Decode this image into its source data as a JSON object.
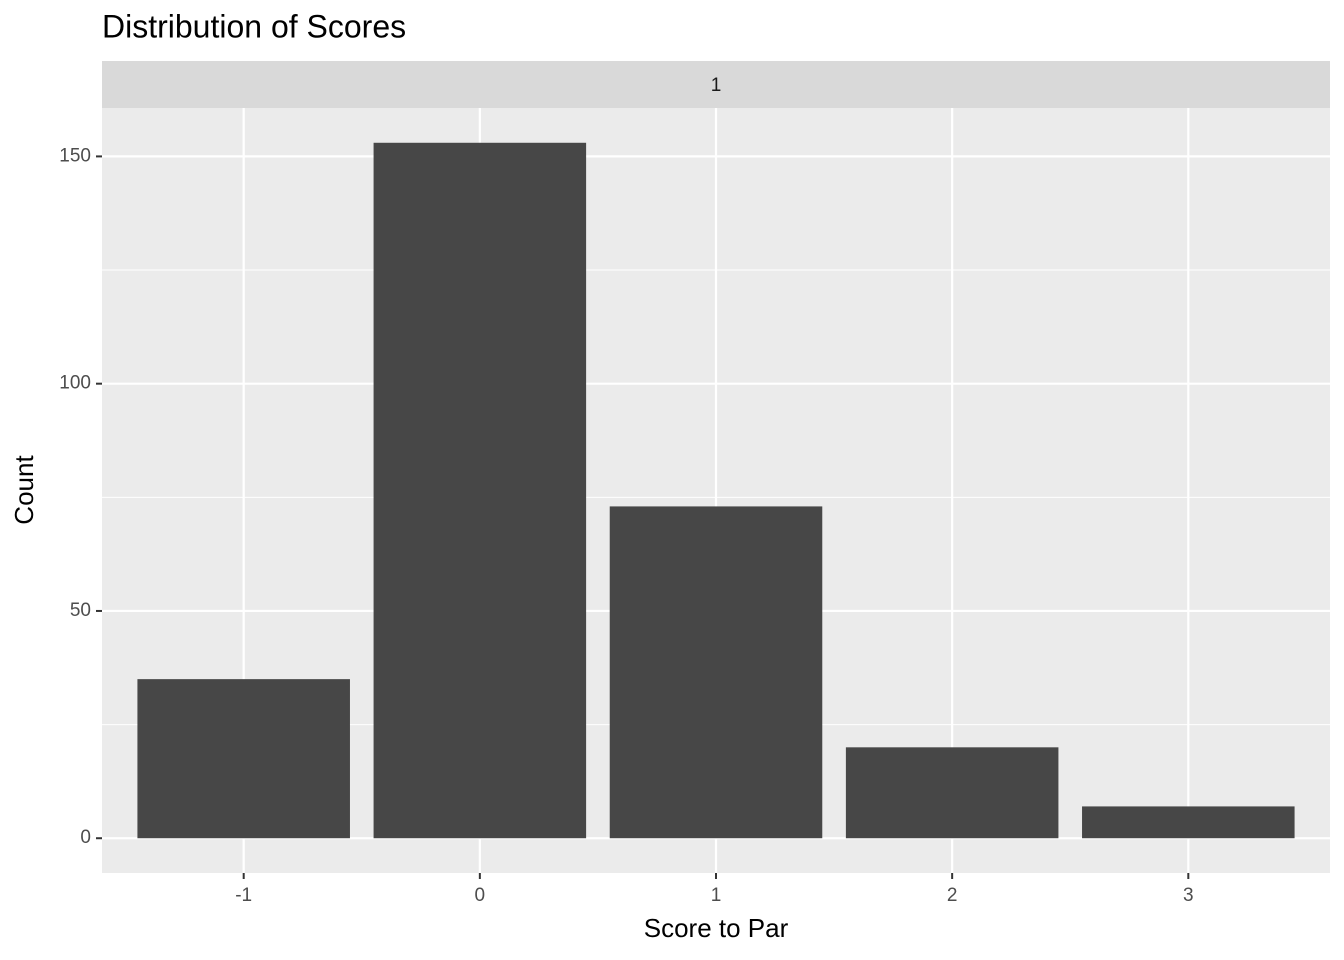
{
  "chart_data": {
    "type": "bar",
    "title": "Distribution of Scores",
    "facet": "1",
    "x_label": "Score to Par",
    "y_label": "Count",
    "categories": [
      "-1",
      "0",
      "1",
      "2",
      "3"
    ],
    "values": [
      35,
      153,
      73,
      20,
      7
    ],
    "color": "#474747",
    "ylim": [
      -7.65,
      160.65
    ],
    "yticks": [
      0,
      50,
      100,
      150
    ],
    "grid": true
  }
}
